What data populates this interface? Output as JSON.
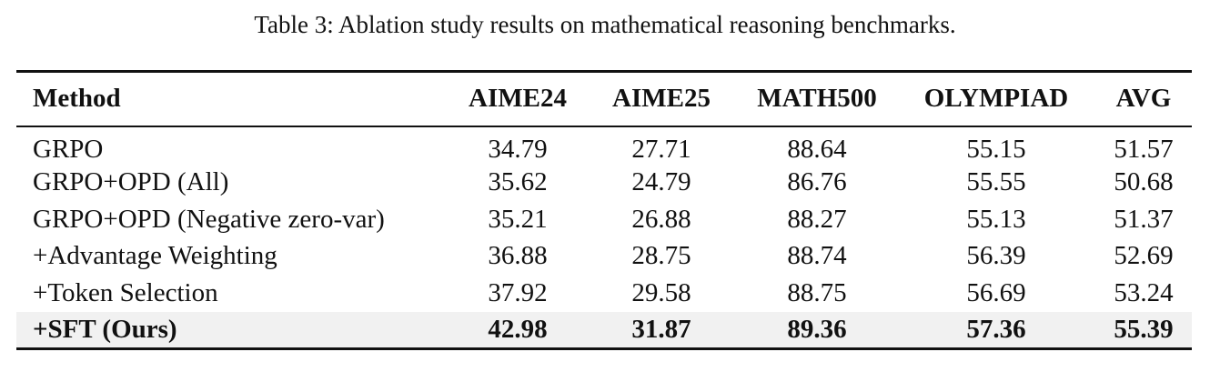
{
  "caption": "Table 3: Ablation study results on mathematical reasoning benchmarks.",
  "table": {
    "headers": [
      "Method",
      "AIME24",
      "AIME25",
      "MATH500",
      "OLYMPIAD",
      "AVG"
    ],
    "rows": [
      [
        "GRPO",
        "34.79",
        "27.71",
        "88.64",
        "55.15",
        "51.57"
      ],
      [
        "GRPO+OPD (All)",
        "35.62",
        "24.79",
        "86.76",
        "55.55",
        "50.68"
      ],
      [
        "GRPO+OPD (Negative zero-var)",
        "35.21",
        "26.88",
        "88.27",
        "55.13",
        "51.37"
      ],
      [
        "+Advantage Weighting",
        "36.88",
        "28.75",
        "88.74",
        "56.39",
        "52.69"
      ],
      [
        "+Token Selection",
        "37.92",
        "29.58",
        "88.75",
        "56.69",
        "53.24"
      ],
      [
        "+SFT (Ours)",
        "42.98",
        "31.87",
        "89.36",
        "57.36",
        "55.39"
      ]
    ],
    "highlighted_row": "+SFT (Ours)",
    "highlight_color": "#f1f1f1"
  }
}
